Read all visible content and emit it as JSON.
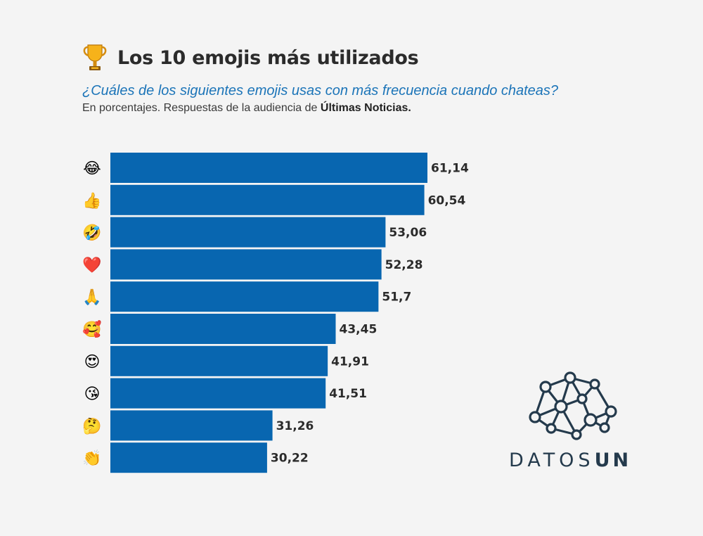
{
  "header": {
    "trophy_icon": "trophy-icon",
    "title": "Los 10 emojis más utilizados",
    "subtitle": "¿Cuáles de los siguientes emojis usas con más frecuencia cuando chateas?",
    "note_prefix": "En porcentajes. Respuestas de la audiencia de ",
    "note_source": "Últimas Noticias."
  },
  "chart_data": {
    "type": "bar",
    "orientation": "horizontal",
    "categories": [
      {
        "emoji": "😂",
        "icon": "tears-of-joy-icon"
      },
      {
        "emoji": "👍",
        "icon": "thumbs-up-icon"
      },
      {
        "emoji": "🤣",
        "icon": "rolling-laughing-icon"
      },
      {
        "emoji": "❤️",
        "icon": "red-heart-icon"
      },
      {
        "emoji": "🙏",
        "icon": "folded-hands-icon"
      },
      {
        "emoji": "🥰",
        "icon": "smiling-hearts-icon"
      },
      {
        "emoji": "😍",
        "icon": "heart-eyes-icon"
      },
      {
        "emoji": "😘",
        "icon": "blowing-kiss-icon"
      },
      {
        "emoji": "🤔",
        "icon": "thinking-face-icon"
      },
      {
        "emoji": "👏",
        "icon": "clapping-hands-icon"
      }
    ],
    "values": [
      61.14,
      60.54,
      53.06,
      52.28,
      51.7,
      43.45,
      41.91,
      41.51,
      31.26,
      30.22
    ],
    "labels": [
      "61,14",
      "60,54",
      "53,06",
      "52,28",
      "51,7",
      "43,45",
      "41,91",
      "41,51",
      "31,26",
      "30,22"
    ],
    "bar_color": "#0866b0",
    "title": "Los 10 emojis más utilizados",
    "xlabel": "",
    "ylabel": "",
    "xlim": [
      0,
      61.14
    ],
    "grid": false,
    "legend": "none"
  },
  "brand": {
    "name_light": "DATOS",
    "name_bold": "UN",
    "color": "#243a4c",
    "logo_icon": "network-logo-icon"
  }
}
